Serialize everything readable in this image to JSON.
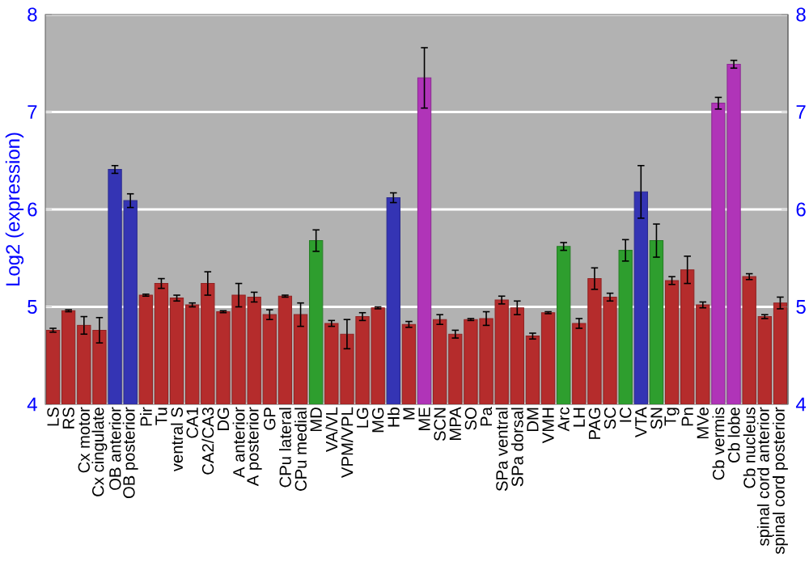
{
  "chart_data": {
    "type": "bar",
    "ylabel": "Log2 (expression)",
    "categories": [
      "LS",
      "RS",
      "Cx motor",
      "Cx cingulate",
      "OB anterior",
      "OB posterior",
      "Pir",
      "Tu",
      "ventral S",
      "CA1",
      "CA2/CA3",
      "DG",
      "A anterior",
      "A posterior",
      "GP",
      "CPu lateral",
      "CPu medial",
      "MD",
      "VA/VL",
      "VPM/VPL",
      "LG",
      "MG",
      "Hb",
      "M",
      "ME",
      "SCN",
      "MPA",
      "SO",
      "Pa",
      "SPa ventral",
      "SPa dorsal",
      "DM",
      "VMH",
      "Arc",
      "LH",
      "PAG",
      "SC",
      "IC",
      "VTA",
      "SN",
      "Tg",
      "Pn",
      "MVe",
      "Cb vermis",
      "Cb lobe",
      "Cb nucleus",
      "spinal cord anterior",
      "spinal cord posterior"
    ],
    "values": [
      4.76,
      4.96,
      4.81,
      4.76,
      6.41,
      6.09,
      5.12,
      5.24,
      5.09,
      5.02,
      5.24,
      4.95,
      5.12,
      5.1,
      4.92,
      5.11,
      4.92,
      5.68,
      4.83,
      4.72,
      4.9,
      4.99,
      6.12,
      4.82,
      7.35,
      4.87,
      4.72,
      4.87,
      4.88,
      5.07,
      4.99,
      4.7,
      4.94,
      5.62,
      4.83,
      5.29,
      5.1,
      5.58,
      6.18,
      5.68,
      5.27,
      5.38,
      5.02,
      7.09,
      7.49,
      5.31,
      4.9,
      5.04
    ],
    "errors": [
      0.02,
      0.01,
      0.09,
      0.13,
      0.04,
      0.07,
      0.01,
      0.05,
      0.03,
      0.02,
      0.12,
      0.01,
      0.12,
      0.05,
      0.05,
      0.01,
      0.12,
      0.11,
      0.03,
      0.15,
      0.04,
      0.01,
      0.05,
      0.03,
      0.31,
      0.05,
      0.04,
      0.01,
      0.07,
      0.04,
      0.07,
      0.03,
      0.01,
      0.04,
      0.05,
      0.11,
      0.04,
      0.11,
      0.27,
      0.17,
      0.04,
      0.14,
      0.03,
      0.06,
      0.04,
      0.03,
      0.02,
      0.06
    ],
    "colors": [
      "#b52c2c",
      "#b52c2c",
      "#b52c2c",
      "#b52c2c",
      "#3434b4",
      "#3434b4",
      "#b52c2c",
      "#b52c2c",
      "#b52c2c",
      "#b52c2c",
      "#b52c2c",
      "#b52c2c",
      "#b52c2c",
      "#b52c2c",
      "#b52c2c",
      "#b52c2c",
      "#b52c2c",
      "#2e9e2e",
      "#b52c2c",
      "#b52c2c",
      "#b52c2c",
      "#b52c2c",
      "#3434b4",
      "#b52c2c",
      "#b034b8",
      "#b52c2c",
      "#b52c2c",
      "#b52c2c",
      "#b52c2c",
      "#b52c2c",
      "#b52c2c",
      "#b52c2c",
      "#b52c2c",
      "#2e9e2e",
      "#b52c2c",
      "#b52c2c",
      "#b52c2c",
      "#2e9e2e",
      "#3434b4",
      "#2e9e2e",
      "#b52c2c",
      "#b52c2c",
      "#b52c2c",
      "#b034b8",
      "#b034b8",
      "#b52c2c",
      "#b52c2c",
      "#b52c2c"
    ],
    "ylim": [
      4,
      8
    ],
    "yticks": [
      4,
      5,
      6,
      7,
      8
    ],
    "y2lim": [
      4,
      8
    ],
    "y2ticks": [
      4,
      5,
      6,
      7,
      8
    ],
    "grid": "y"
  }
}
